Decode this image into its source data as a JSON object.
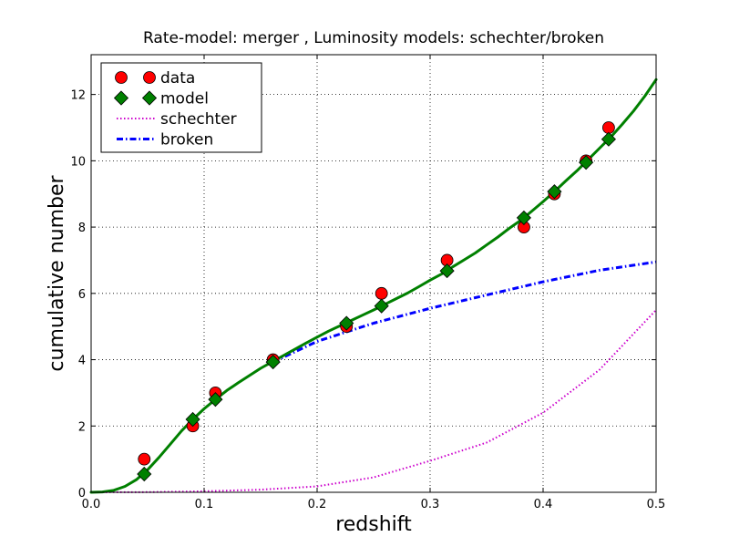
{
  "chart_data": {
    "type": "line",
    "title": "Rate-model: merger , Luminosity models: schechter/broken",
    "xlabel": "redshift",
    "ylabel": "cumulative number",
    "xlim": [
      0.0,
      0.5
    ],
    "ylim": [
      0,
      13.2
    ],
    "xticks": [
      0.0,
      0.1,
      0.2,
      0.3,
      0.4,
      0.5
    ],
    "xtick_labels": [
      "0.0",
      "0.1",
      "0.2",
      "0.3",
      "0.4",
      "0.5"
    ],
    "yticks": [
      0,
      2,
      4,
      6,
      8,
      10,
      12
    ],
    "ytick_labels": [
      "0",
      "2",
      "4",
      "6",
      "8",
      "10",
      "12"
    ],
    "grid": true,
    "legend_position": "top-left",
    "series": [
      {
        "name": "data",
        "style": "markers",
        "marker": "circle",
        "color": "#ff0000",
        "points": [
          [
            0.047,
            1
          ],
          [
            0.09,
            2
          ],
          [
            0.11,
            3
          ],
          [
            0.161,
            4
          ],
          [
            0.226,
            5
          ],
          [
            0.257,
            6
          ],
          [
            0.315,
            7
          ],
          [
            0.383,
            8
          ],
          [
            0.41,
            9
          ],
          [
            0.438,
            10
          ],
          [
            0.458,
            11
          ]
        ]
      },
      {
        "name": "model",
        "style": "markers",
        "marker": "diamond",
        "color": "#008000",
        "points": [
          [
            0.047,
            0.55
          ],
          [
            0.09,
            2.2
          ],
          [
            0.11,
            2.8
          ],
          [
            0.161,
            3.93
          ],
          [
            0.226,
            5.1
          ],
          [
            0.257,
            5.62
          ],
          [
            0.315,
            6.68
          ],
          [
            0.383,
            8.28
          ],
          [
            0.41,
            9.07
          ],
          [
            0.438,
            9.95
          ],
          [
            0.458,
            10.65
          ]
        ]
      },
      {
        "name": "model fit",
        "style": "solid",
        "color": "#008000",
        "points": [
          [
            0.0,
            0
          ],
          [
            0.01,
            0.01
          ],
          [
            0.02,
            0.06
          ],
          [
            0.03,
            0.18
          ],
          [
            0.04,
            0.38
          ],
          [
            0.05,
            0.68
          ],
          [
            0.06,
            1.05
          ],
          [
            0.07,
            1.45
          ],
          [
            0.08,
            1.85
          ],
          [
            0.09,
            2.2
          ],
          [
            0.1,
            2.52
          ],
          [
            0.11,
            2.8
          ],
          [
            0.12,
            3.07
          ],
          [
            0.13,
            3.3
          ],
          [
            0.14,
            3.52
          ],
          [
            0.15,
            3.74
          ],
          [
            0.16,
            3.93
          ],
          [
            0.17,
            4.12
          ],
          [
            0.18,
            4.31
          ],
          [
            0.19,
            4.5
          ],
          [
            0.2,
            4.68
          ],
          [
            0.21,
            4.86
          ],
          [
            0.22,
            5.02
          ],
          [
            0.23,
            5.18
          ],
          [
            0.24,
            5.34
          ],
          [
            0.25,
            5.5
          ],
          [
            0.26,
            5.67
          ],
          [
            0.27,
            5.84
          ],
          [
            0.28,
            6.01
          ],
          [
            0.29,
            6.2
          ],
          [
            0.3,
            6.4
          ],
          [
            0.31,
            6.58
          ],
          [
            0.32,
            6.8
          ],
          [
            0.33,
            7.01
          ],
          [
            0.34,
            7.22
          ],
          [
            0.35,
            7.46
          ],
          [
            0.36,
            7.7
          ],
          [
            0.37,
            7.96
          ],
          [
            0.38,
            8.2
          ],
          [
            0.39,
            8.48
          ],
          [
            0.4,
            8.77
          ],
          [
            0.41,
            9.07
          ],
          [
            0.42,
            9.39
          ],
          [
            0.43,
            9.7
          ],
          [
            0.44,
            10.04
          ],
          [
            0.45,
            10.38
          ],
          [
            0.46,
            10.72
          ],
          [
            0.47,
            11.1
          ],
          [
            0.48,
            11.5
          ],
          [
            0.49,
            11.95
          ],
          [
            0.5,
            12.45
          ]
        ]
      },
      {
        "name": "schechter",
        "style": "dotted",
        "color": "#cc00cc",
        "points": [
          [
            0.0,
            0
          ],
          [
            0.05,
            0.005
          ],
          [
            0.1,
            0.03
          ],
          [
            0.15,
            0.08
          ],
          [
            0.2,
            0.18
          ],
          [
            0.25,
            0.45
          ],
          [
            0.3,
            0.95
          ],
          [
            0.35,
            1.5
          ],
          [
            0.4,
            2.4
          ],
          [
            0.45,
            3.7
          ],
          [
            0.5,
            5.5
          ]
        ]
      },
      {
        "name": "broken",
        "style": "dashdot",
        "color": "#0000ff",
        "points": [
          [
            0.161,
            3.93
          ],
          [
            0.2,
            4.55
          ],
          [
            0.25,
            5.1
          ],
          [
            0.3,
            5.55
          ],
          [
            0.35,
            5.95
          ],
          [
            0.4,
            6.35
          ],
          [
            0.45,
            6.7
          ],
          [
            0.5,
            6.95
          ]
        ]
      }
    ],
    "legend": [
      "data",
      "model",
      "schechter",
      "broken"
    ]
  }
}
